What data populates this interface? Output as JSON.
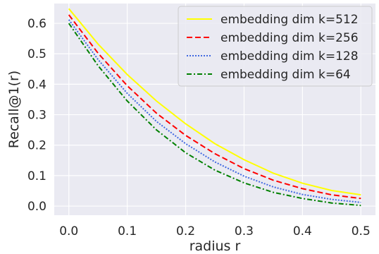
{
  "chart_data": {
    "type": "line",
    "xlabel": "radius r",
    "ylabel": "Recall@1(r)",
    "xlim": [
      -0.025,
      0.525
    ],
    "ylim": [
      -0.03,
      0.665
    ],
    "xticks": [
      0.0,
      0.1,
      0.2,
      0.3,
      0.4,
      0.5
    ],
    "xtick_labels": [
      "0.0",
      "0.1",
      "0.2",
      "0.3",
      "0.4",
      "0.5"
    ],
    "yticks": [
      0.0,
      0.1,
      0.2,
      0.3,
      0.4,
      0.5,
      0.6
    ],
    "ytick_labels": [
      "0.0",
      "0.1",
      "0.2",
      "0.3",
      "0.4",
      "0.5",
      "0.6"
    ],
    "grid": true,
    "legend": "top-right",
    "x": [
      0.0,
      0.05,
      0.1,
      0.15,
      0.2,
      0.25,
      0.3,
      0.35,
      0.4,
      0.45,
      0.5
    ],
    "series": [
      {
        "name": "embedding dim k=512",
        "color": "#ffff00",
        "style": "solid",
        "values": [
          0.648,
          0.532,
          0.432,
          0.345,
          0.27,
          0.205,
          0.152,
          0.108,
          0.075,
          0.051,
          0.037
        ]
      },
      {
        "name": "embedding dim k=256",
        "color": "#ff0000",
        "style": "dashed",
        "values": [
          0.628,
          0.502,
          0.395,
          0.305,
          0.232,
          0.172,
          0.123,
          0.085,
          0.057,
          0.037,
          0.025
        ]
      },
      {
        "name": "embedding dim k=128",
        "color": "#4169e1",
        "style": "dotted",
        "values": [
          0.612,
          0.481,
          0.37,
          0.278,
          0.205,
          0.145,
          0.098,
          0.063,
          0.038,
          0.022,
          0.012
        ]
      },
      {
        "name": "embedding dim k=64",
        "color": "#008000",
        "style": "dashdot",
        "values": [
          0.6,
          0.461,
          0.345,
          0.25,
          0.175,
          0.118,
          0.076,
          0.045,
          0.025,
          0.01,
          0.002
        ]
      }
    ]
  }
}
